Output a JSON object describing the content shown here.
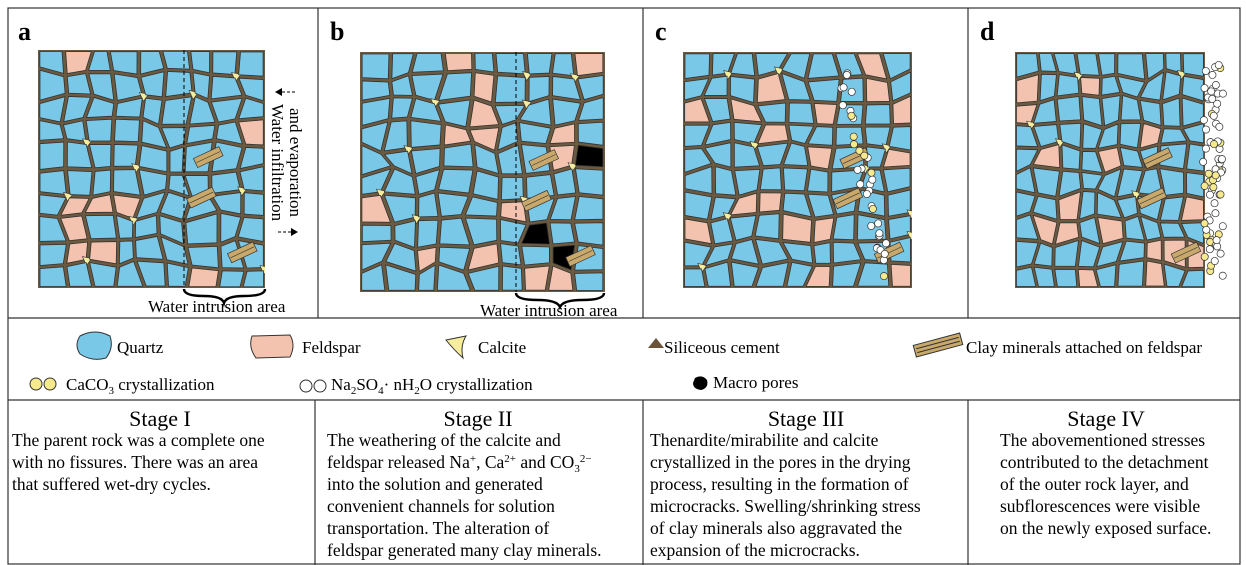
{
  "panels": [
    {
      "label": "a"
    },
    {
      "label": "b"
    },
    {
      "label": "c"
    },
    {
      "label": "d"
    }
  ],
  "annotations": {
    "water_flow": [
      "Water infiltration",
      "and evaporation"
    ],
    "intrusion_a": "Water intrusion area",
    "intrusion_b": "Water intrusion area"
  },
  "legend": {
    "quartz": "Quartz",
    "feldspar": "Feldspar",
    "calcite": "Calcite",
    "cement": "Siliceous cement",
    "clay": "Clay minerals attached on feldspar",
    "caco3": [
      "CaCO",
      "3",
      " crystallization"
    ],
    "na2so4": [
      "Na",
      "2",
      "SO",
      "4",
      "· nH",
      "2",
      "O crystallization"
    ],
    "pores": "Macro pores"
  },
  "stages": [
    {
      "title": "Stage I",
      "lines": [
        "The parent rock was a complete one",
        "with no fissures. There was an area",
        " that suffered wet-dry cycles."
      ]
    },
    {
      "title": "Stage II",
      "line1": "The weathering of the calcite and",
      "line2": [
        "feldspar released Na",
        "+",
        ", Ca",
        "2+",
        " and CO",
        "3",
        "2−"
      ],
      "lines": [
        "into the solution and generated",
        "convenient channels for solution",
        "transportation. The alteration of",
        "feldspar generated many clay minerals."
      ]
    },
    {
      "title": "Stage III",
      "lines": [
        "Thenardite/mirabilite and calcite",
        "crystallized in the pores in the drying",
        "process, resulting in the formation of",
        "microcracks. Swelling/shrinking stress",
        "of clay minerals also aggravated the",
        "expansion of the microcracks."
      ]
    },
    {
      "title": "Stage IV",
      "lines": [
        "The abovementioned stresses",
        "contributed to the detachment",
        "of the outer rock layer, and",
        "subflorescences were visible",
        "on the newly exposed surface."
      ]
    }
  ]
}
